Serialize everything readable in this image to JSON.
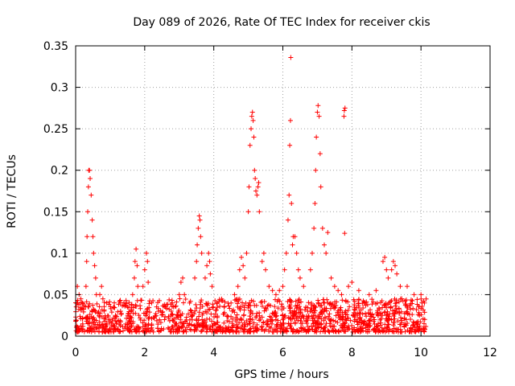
{
  "chart_data": {
    "type": "scatter",
    "title": "Day 089 of 2026, Rate Of TEC Index for receiver ckis",
    "xlabel": "GPS time / hours",
    "ylabel": "ROTI / TECUs",
    "xlim": [
      0,
      12
    ],
    "ylim": [
      0,
      0.35
    ],
    "xticks": [
      "0",
      "2",
      "4",
      "6",
      "8",
      "10",
      "12"
    ],
    "yticks": [
      "0",
      "0.05",
      "0.1",
      "0.15",
      "0.2",
      "0.25",
      "0.3",
      "0.35"
    ],
    "grid": true,
    "marker": "plus",
    "color": "#ff0000",
    "data_extent_hours": [
      0.0,
      10.15
    ],
    "baseline_band": [
      0.005,
      0.04
    ],
    "series": [
      {
        "points": [
          [
            0.05,
            0.06
          ],
          [
            0.1,
            0.05
          ],
          [
            0.15,
            0.045
          ],
          [
            0.2,
            0.04
          ],
          [
            0.3,
            0.06
          ],
          [
            0.32,
            0.09
          ],
          [
            0.33,
            0.12
          ],
          [
            0.35,
            0.15
          ],
          [
            0.37,
            0.18
          ],
          [
            0.38,
            0.2
          ],
          [
            0.4,
            0.2
          ],
          [
            0.42,
            0.19
          ],
          [
            0.45,
            0.17
          ],
          [
            0.48,
            0.14
          ],
          [
            0.5,
            0.12
          ],
          [
            0.52,
            0.1
          ],
          [
            0.55,
            0.085
          ],
          [
            0.58,
            0.07
          ],
          [
            0.6,
            0.05
          ],
          [
            0.7,
            0.05
          ],
          [
            0.75,
            0.06
          ],
          [
            0.9,
            0.04
          ],
          [
            1.1,
            0.035
          ],
          [
            1.3,
            0.03
          ],
          [
            1.5,
            0.035
          ],
          [
            1.65,
            0.05
          ],
          [
            1.7,
            0.07
          ],
          [
            1.72,
            0.09
          ],
          [
            1.75,
            0.105
          ],
          [
            1.78,
            0.085
          ],
          [
            1.8,
            0.06
          ],
          [
            1.95,
            0.06
          ],
          [
            2.0,
            0.08
          ],
          [
            2.05,
            0.1
          ],
          [
            2.08,
            0.09
          ],
          [
            2.1,
            0.065
          ],
          [
            2.2,
            0.04
          ],
          [
            2.4,
            0.03
          ],
          [
            2.6,
            0.035
          ],
          [
            2.8,
            0.04
          ],
          [
            3.0,
            0.05
          ],
          [
            3.05,
            0.065
          ],
          [
            3.1,
            0.07
          ],
          [
            3.15,
            0.05
          ],
          [
            3.3,
            0.04
          ],
          [
            3.45,
            0.07
          ],
          [
            3.5,
            0.09
          ],
          [
            3.52,
            0.11
          ],
          [
            3.55,
            0.13
          ],
          [
            3.58,
            0.145
          ],
          [
            3.6,
            0.14
          ],
          [
            3.62,
            0.12
          ],
          [
            3.65,
            0.1
          ],
          [
            3.75,
            0.07
          ],
          [
            3.8,
            0.085
          ],
          [
            3.85,
            0.1
          ],
          [
            3.88,
            0.09
          ],
          [
            3.9,
            0.075
          ],
          [
            3.95,
            0.06
          ],
          [
            4.1,
            0.04
          ],
          [
            4.3,
            0.035
          ],
          [
            4.5,
            0.04
          ],
          [
            4.6,
            0.05
          ],
          [
            4.7,
            0.06
          ],
          [
            4.75,
            0.08
          ],
          [
            4.8,
            0.095
          ],
          [
            4.85,
            0.085
          ],
          [
            4.9,
            0.07
          ],
          [
            4.95,
            0.1
          ],
          [
            5.0,
            0.15
          ],
          [
            5.02,
            0.18
          ],
          [
            5.05,
            0.23
          ],
          [
            5.08,
            0.25
          ],
          [
            5.1,
            0.265
          ],
          [
            5.12,
            0.27
          ],
          [
            5.14,
            0.26
          ],
          [
            5.16,
            0.24
          ],
          [
            5.18,
            0.2
          ],
          [
            5.2,
            0.19
          ],
          [
            5.22,
            0.175
          ],
          [
            5.25,
            0.17
          ],
          [
            5.28,
            0.18
          ],
          [
            5.3,
            0.185
          ],
          [
            5.32,
            0.15
          ],
          [
            5.4,
            0.09
          ],
          [
            5.45,
            0.1
          ],
          [
            5.5,
            0.08
          ],
          [
            5.6,
            0.06
          ],
          [
            5.7,
            0.055
          ],
          [
            5.8,
            0.05
          ],
          [
            5.9,
            0.055
          ],
          [
            6.0,
            0.06
          ],
          [
            6.05,
            0.08
          ],
          [
            6.1,
            0.1
          ],
          [
            6.15,
            0.14
          ],
          [
            6.18,
            0.17
          ],
          [
            6.2,
            0.23
          ],
          [
            6.22,
            0.26
          ],
          [
            6.23,
            0.336
          ],
          [
            6.25,
            0.16
          ],
          [
            6.28,
            0.11
          ],
          [
            6.3,
            0.12
          ],
          [
            6.35,
            0.12
          ],
          [
            6.4,
            0.1
          ],
          [
            6.45,
            0.08
          ],
          [
            6.5,
            0.07
          ],
          [
            6.6,
            0.06
          ],
          [
            6.8,
            0.08
          ],
          [
            6.85,
            0.1
          ],
          [
            6.9,
            0.13
          ],
          [
            6.93,
            0.16
          ],
          [
            6.95,
            0.2
          ],
          [
            6.97,
            0.24
          ],
          [
            7.0,
            0.27
          ],
          [
            7.02,
            0.278
          ],
          [
            7.05,
            0.265
          ],
          [
            7.08,
            0.22
          ],
          [
            7.1,
            0.18
          ],
          [
            7.15,
            0.13
          ],
          [
            7.2,
            0.11
          ],
          [
            7.25,
            0.1
          ],
          [
            7.3,
            0.125
          ],
          [
            7.4,
            0.07
          ],
          [
            7.5,
            0.06
          ],
          [
            7.6,
            0.055
          ],
          [
            7.7,
            0.05
          ],
          [
            7.77,
            0.265
          ],
          [
            7.78,
            0.272
          ],
          [
            7.8,
            0.275
          ],
          [
            7.79,
            0.124
          ],
          [
            7.9,
            0.06
          ],
          [
            8.0,
            0.065
          ],
          [
            8.2,
            0.055
          ],
          [
            8.5,
            0.05
          ],
          [
            8.7,
            0.055
          ],
          [
            8.9,
            0.09
          ],
          [
            8.95,
            0.095
          ],
          [
            9.0,
            0.08
          ],
          [
            9.05,
            0.07
          ],
          [
            9.15,
            0.08
          ],
          [
            9.2,
            0.09
          ],
          [
            9.25,
            0.085
          ],
          [
            9.3,
            0.075
          ],
          [
            9.4,
            0.06
          ],
          [
            9.6,
            0.06
          ],
          [
            9.8,
            0.05
          ],
          [
            10.0,
            0.05
          ],
          [
            10.1,
            0.04
          ]
        ]
      }
    ]
  }
}
